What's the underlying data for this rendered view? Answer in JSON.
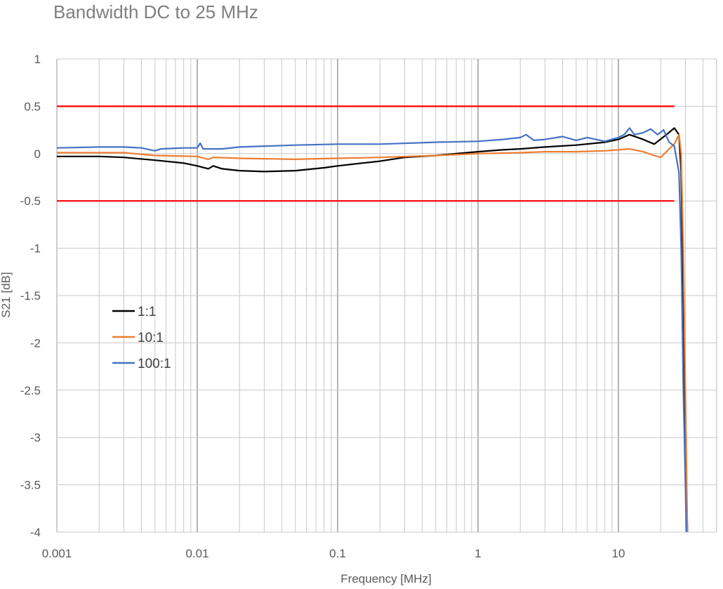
{
  "chart_data": {
    "type": "line",
    "title": "Bandwidth DC to 25 MHz",
    "xlabel": "Frequency [MHz]",
    "ylabel": "S21 [dB]",
    "xscale": "log",
    "xlim": [
      0.001,
      50
    ],
    "ylim": [
      -4,
      1
    ],
    "grid": true,
    "legend_position": "left-middle",
    "x_ticks": [
      {
        "value": 0.001,
        "label": "0.001"
      },
      {
        "value": 0.01,
        "label": "0.01"
      },
      {
        "value": 0.1,
        "label": "0.1"
      },
      {
        "value": 1,
        "label": "1"
      },
      {
        "value": 10,
        "label": "10"
      }
    ],
    "y_ticks": [
      {
        "value": 1,
        "label": "1"
      },
      {
        "value": 0.5,
        "label": "0.5"
      },
      {
        "value": 0,
        "label": "0"
      },
      {
        "value": -0.5,
        "label": "-0.5"
      },
      {
        "value": -1,
        "label": "-1"
      },
      {
        "value": -1.5,
        "label": "-1.5"
      },
      {
        "value": -2,
        "label": "-2"
      },
      {
        "value": -2.5,
        "label": "-2.5"
      },
      {
        "value": -3,
        "label": "-3"
      },
      {
        "value": -3.5,
        "label": "-3.5"
      },
      {
        "value": -4,
        "label": "-4"
      }
    ],
    "limit_lines": [
      {
        "y": 0.5,
        "x_range": [
          0.001,
          25
        ],
        "color": "#ff0000"
      },
      {
        "y": -0.5,
        "x_range": [
          0.001,
          25
        ],
        "color": "#ff0000"
      }
    ],
    "series": [
      {
        "name": "1:1",
        "color": "#000000",
        "x": [
          0.001,
          0.002,
          0.003,
          0.005,
          0.008,
          0.01,
          0.012,
          0.013,
          0.015,
          0.02,
          0.03,
          0.05,
          0.08,
          0.1,
          0.15,
          0.2,
          0.3,
          0.5,
          0.7,
          1,
          1.5,
          2,
          3,
          5,
          8,
          10,
          12,
          15,
          18,
          22,
          25,
          27,
          28,
          29,
          30,
          31
        ],
        "y": [
          -0.03,
          -0.03,
          -0.04,
          -0.07,
          -0.1,
          -0.13,
          -0.16,
          -0.13,
          -0.16,
          -0.18,
          -0.19,
          -0.18,
          -0.15,
          -0.13,
          -0.1,
          -0.08,
          -0.04,
          -0.02,
          0,
          0.02,
          0.04,
          0.05,
          0.07,
          0.09,
          0.12,
          0.15,
          0.2,
          0.15,
          0.1,
          0.2,
          0.27,
          0.2,
          -0.2,
          -1.5,
          -3,
          -4
        ]
      },
      {
        "name": "10:1",
        "color": "#ed7d31",
        "x": [
          0.001,
          0.003,
          0.005,
          0.01,
          0.012,
          0.013,
          0.02,
          0.05,
          0.1,
          0.2,
          0.5,
          1,
          2,
          3,
          5,
          8,
          10,
          12,
          15,
          18,
          20,
          23,
          25,
          27,
          28,
          29,
          30,
          31
        ],
        "y": [
          0.01,
          0.01,
          -0.02,
          -0.03,
          -0.06,
          -0.04,
          -0.05,
          -0.06,
          -0.05,
          -0.04,
          -0.02,
          0,
          0.01,
          0.02,
          0.02,
          0.03,
          0.04,
          0.05,
          0.02,
          -0.02,
          -0.04,
          0.05,
          0.1,
          0.2,
          0,
          -1,
          -2.5,
          -4
        ]
      },
      {
        "name": "100:1",
        "color": "#4472c4",
        "x": [
          0.001,
          0.002,
          0.003,
          0.004,
          0.005,
          0.0055,
          0.008,
          0.01,
          0.0105,
          0.011,
          0.015,
          0.02,
          0.05,
          0.1,
          0.2,
          0.5,
          1,
          1.5,
          2,
          2.2,
          2.5,
          3,
          4,
          5,
          6,
          8,
          10,
          11,
          12,
          13,
          15,
          17,
          19,
          21,
          23,
          25,
          27,
          28,
          29,
          30.5
        ],
        "y": [
          0.06,
          0.07,
          0.07,
          0.06,
          0.03,
          0.05,
          0.06,
          0.06,
          0.11,
          0.05,
          0.05,
          0.07,
          0.09,
          0.1,
          0.1,
          0.12,
          0.13,
          0.15,
          0.17,
          0.2,
          0.14,
          0.15,
          0.18,
          0.14,
          0.17,
          0.13,
          0.17,
          0.2,
          0.27,
          0.2,
          0.22,
          0.26,
          0.2,
          0.25,
          0.12,
          0.08,
          -0.2,
          -1,
          -2.5,
          -4
        ]
      }
    ]
  }
}
